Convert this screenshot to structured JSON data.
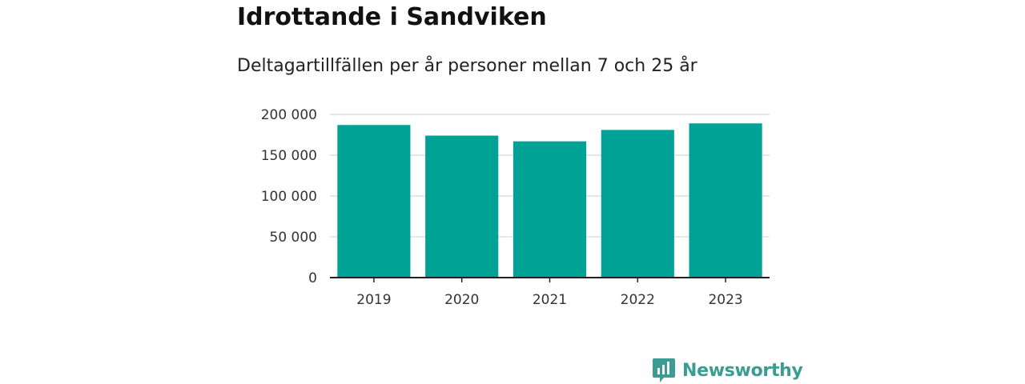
{
  "header": {
    "title": "Idrottande i Sandviken",
    "subtitle": "Deltagartillfällen per år personer mellan 7 och 25 år"
  },
  "chart_data": {
    "type": "bar",
    "title": "Idrottande i Sandviken",
    "subtitle": "Deltagartillfällen per år personer mellan 7 och 25 år",
    "categories": [
      "2019",
      "2020",
      "2021",
      "2022",
      "2023"
    ],
    "values": [
      187000,
      174000,
      167000,
      181000,
      189000
    ],
    "xlabel": "",
    "ylabel": "",
    "ylim": [
      0,
      200000
    ],
    "yticks": [
      0,
      50000,
      100000,
      150000,
      200000
    ],
    "ytick_labels": [
      "0",
      "50 000",
      "100 000",
      "150 000",
      "200 000"
    ],
    "grid": true,
    "legend": "none",
    "bar_color": "#00a296"
  },
  "branding": {
    "logo_text": "Newsworthy",
    "logo_color": "#3a9c92",
    "logo_icon": "bar-chart-speech-bubble-icon"
  }
}
